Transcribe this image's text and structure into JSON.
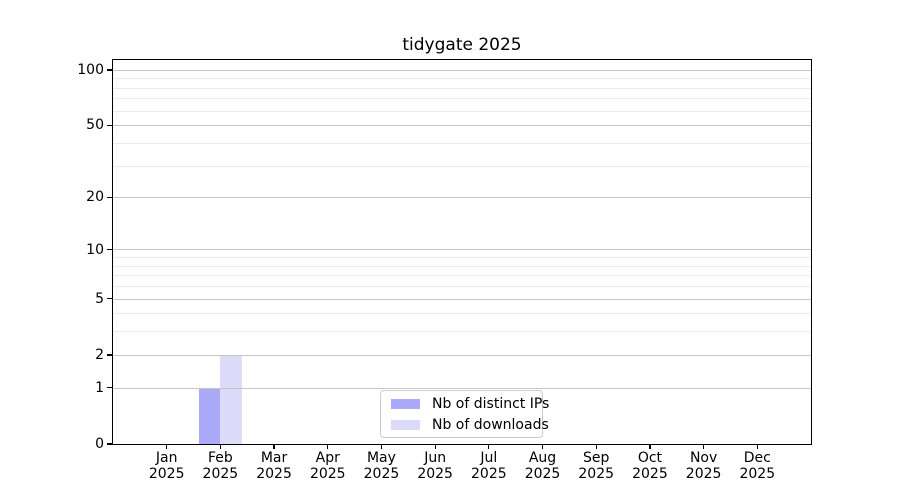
{
  "chart_data": {
    "type": "bar",
    "title": "tidygate 2025",
    "x_tick_months": [
      "Jan",
      "Feb",
      "Mar",
      "Apr",
      "May",
      "Jun",
      "Jul",
      "Aug",
      "Sep",
      "Oct",
      "Nov",
      "Dec"
    ],
    "x_tick_year": "2025",
    "categories": [
      "Jan 2025",
      "Feb 2025",
      "Mar 2025",
      "Apr 2025",
      "May 2025",
      "Jun 2025",
      "Jul 2025",
      "Aug 2025",
      "Sep 2025",
      "Oct 2025",
      "Nov 2025",
      "Dec 2025"
    ],
    "series": [
      {
        "name": "Nb of distinct IPs",
        "color": "#aaaaf8",
        "values": [
          0,
          1,
          0,
          0,
          0,
          0,
          0,
          0,
          0,
          0,
          0,
          0
        ]
      },
      {
        "name": "Nb of downloads",
        "color": "#dcdcfa",
        "values": [
          0,
          2,
          0,
          0,
          0,
          0,
          0,
          0,
          0,
          0,
          0,
          0
        ]
      }
    ],
    "scale": "log1p",
    "y_ticks": [
      0,
      1,
      2,
      5,
      10,
      20,
      50,
      100
    ],
    "y_major_gridlines": [
      1,
      2,
      5,
      10,
      20,
      50,
      100
    ],
    "y_minor_gridlines": [
      3,
      4,
      6,
      7,
      8,
      9,
      30,
      40,
      60,
      70,
      80,
      90
    ],
    "ylim": [
      0,
      113
    ],
    "grid": true,
    "legend_position": "lower center",
    "colors": {
      "background": "#ffffff",
      "axis": "#000000",
      "text": "#000000",
      "major_grid": "#c6c6c6",
      "minor_grid": "#ececec"
    }
  }
}
